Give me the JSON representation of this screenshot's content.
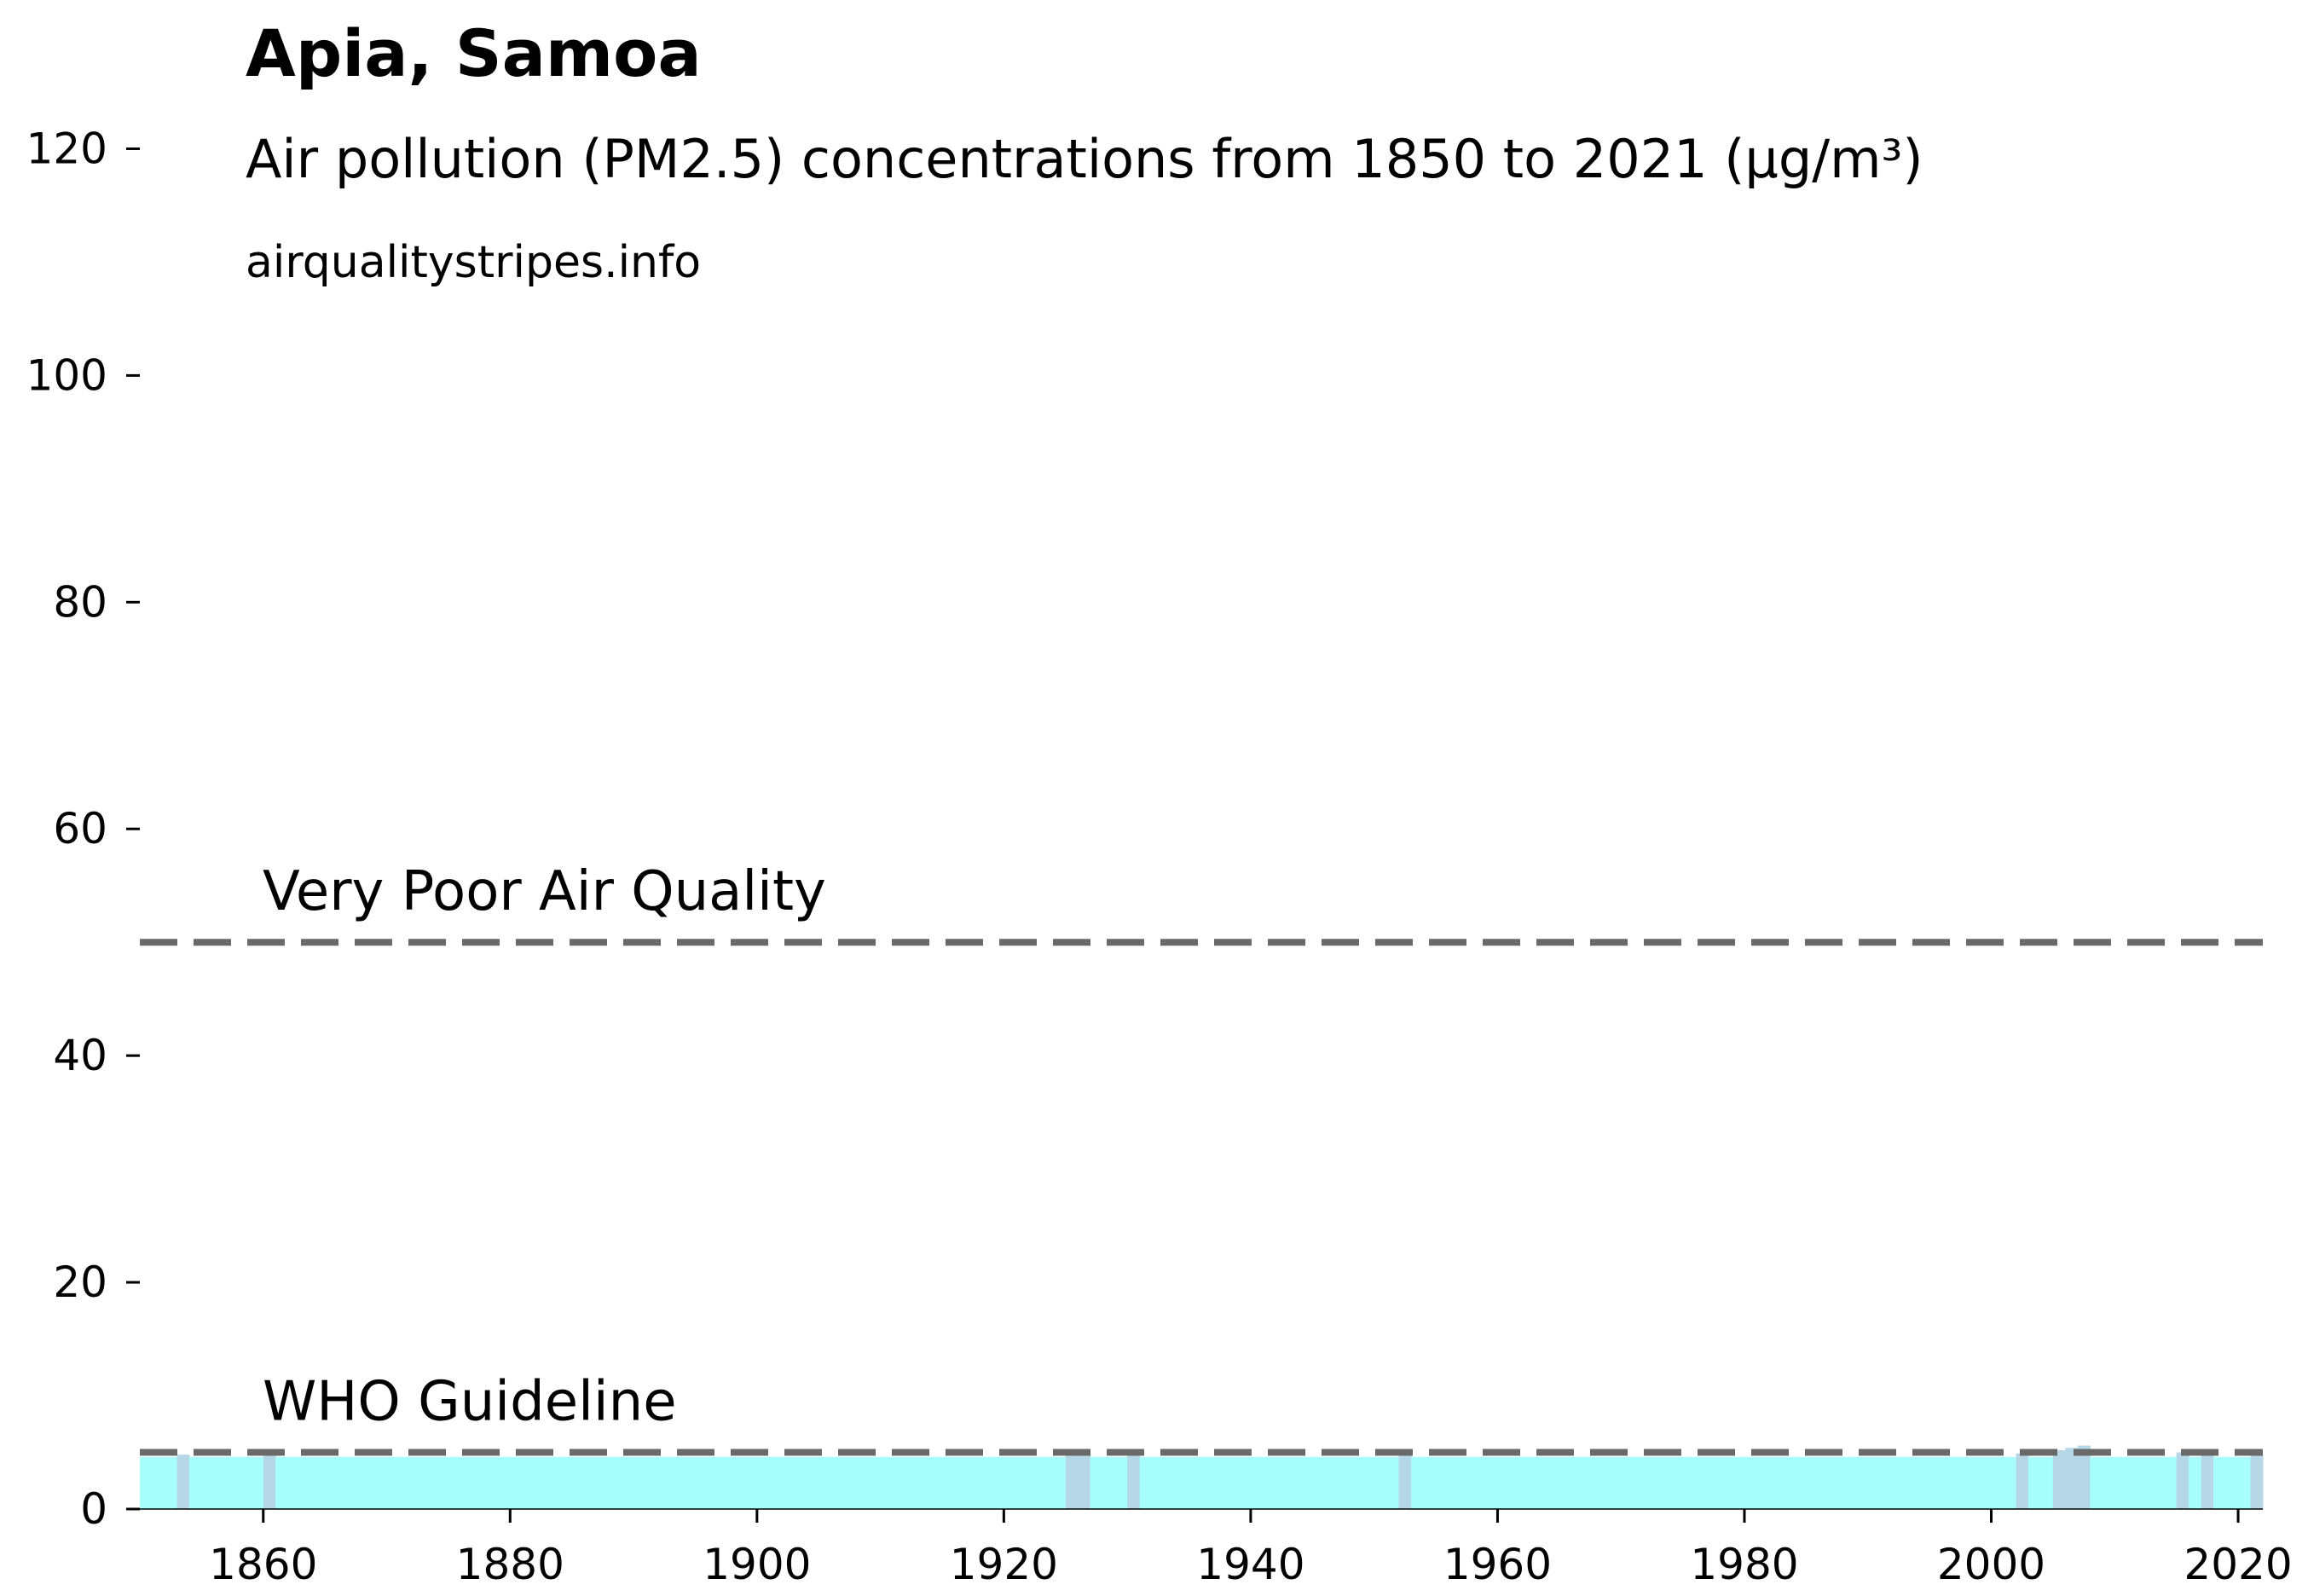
{
  "chart_data": {
    "type": "bar",
    "title": "Apia, Samoa",
    "subtitle": "Air pollution (PM2.5) concentrations from 1850 to 2021 (µg/m³)",
    "source": "airqualitystripes.info",
    "xlabel": "",
    "ylabel": "",
    "xlim": [
      1850,
      2022
    ],
    "ylim": [
      0,
      125
    ],
    "x_ticks": [
      1860,
      1880,
      1900,
      1920,
      1940,
      1960,
      1980,
      2000,
      2020
    ],
    "y_ticks": [
      0,
      20,
      40,
      60,
      80,
      100,
      120
    ],
    "grid": false,
    "bar_color": "#a6fffd",
    "bar_color_elevated": "#b6d8e6",
    "default_value": 4.6,
    "elevated_years": [
      {
        "year": 1853,
        "value": 4.8
      },
      {
        "year": 1860,
        "value": 4.8
      },
      {
        "year": 1925,
        "value": 4.9
      },
      {
        "year": 1926,
        "value": 4.9
      },
      {
        "year": 1930,
        "value": 4.8
      },
      {
        "year": 1952,
        "value": 4.8
      },
      {
        "year": 2002,
        "value": 4.9
      },
      {
        "year": 2005,
        "value": 5.2
      },
      {
        "year": 2006,
        "value": 5.4
      },
      {
        "year": 2007,
        "value": 5.6
      },
      {
        "year": 2015,
        "value": 5.0
      },
      {
        "year": 2017,
        "value": 5.0
      },
      {
        "year": 2021,
        "value": 4.8
      }
    ],
    "reference_lines": [
      {
        "label": "Very Poor Air Quality",
        "value": 50,
        "color": "#696969"
      },
      {
        "label": "WHO Guideline",
        "value": 5,
        "color": "#696969"
      }
    ]
  }
}
